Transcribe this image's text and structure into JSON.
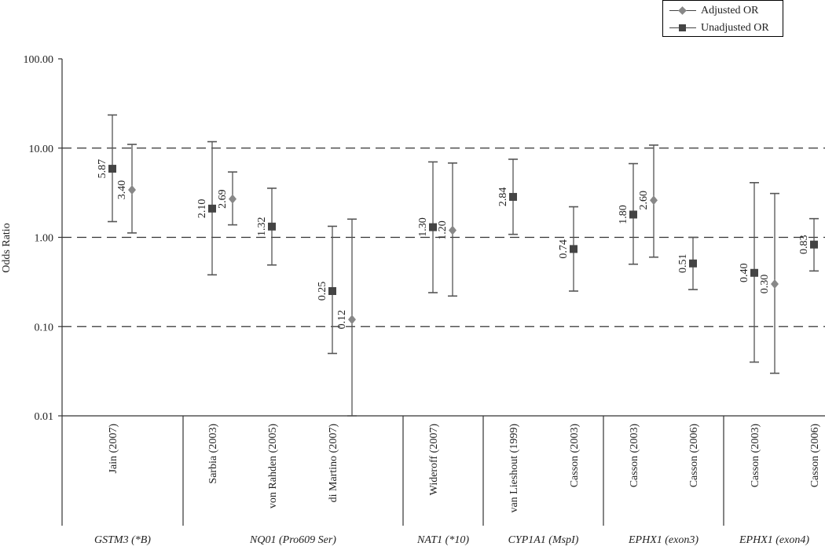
{
  "chart_data": {
    "type": "scatter",
    "subtype": "forest-plot-with-error-bars",
    "ylabel": "Odds Ratio",
    "yscale": "log",
    "ylim": [
      0.01,
      100
    ],
    "yticks": [
      "0.01",
      "0.10",
      "1.00",
      "10.00",
      "100.00"
    ],
    "reference_lines": [
      0.1,
      1,
      10
    ],
    "legend": {
      "placement": "top-right",
      "entries": [
        {
          "name": "Adjusted OR",
          "marker": "diamond",
          "color": "#888888"
        },
        {
          "name": "Unadjusted OR",
          "marker": "square",
          "color": "#444444"
        }
      ]
    },
    "studies": [
      {
        "label": "Jain (2007)",
        "group": 0,
        "series": "Unadjusted OR",
        "value": 5.87,
        "value_label": "5.87",
        "lower": 1.5,
        "upper": 23.5
      },
      {
        "label": "",
        "group": 0,
        "series": "Adjusted OR",
        "value": 3.4,
        "value_label": "3.40",
        "lower": 1.12,
        "upper": 11
      },
      {
        "label": "Sarbia (2003)",
        "group": 1,
        "series": "Unadjusted OR",
        "value": 2.1,
        "value_label": "2.10",
        "lower": 0.38,
        "upper": 11.8
      },
      {
        "label": "",
        "group": 1,
        "series": "Adjusted OR",
        "value": 2.69,
        "value_label": "2.69",
        "lower": 1.38,
        "upper": 5.4
      },
      {
        "label": "von Rahden (2005)",
        "group": 1,
        "series": "Unadjusted OR",
        "value": 1.32,
        "value_label": "1.32",
        "lower": 0.49,
        "upper": 3.55
      },
      {
        "label": "di Martino (2007)",
        "group": 1,
        "series": "Unadjusted OR",
        "value": 0.25,
        "value_label": "0.25",
        "lower": 0.05,
        "upper": 1.33
      },
      {
        "label": "",
        "group": 1,
        "series": "Adjusted OR",
        "value": 0.12,
        "value_label": "0.12",
        "lower": 0.01,
        "upper": 1.6
      },
      {
        "label": "Wideroff (2007)",
        "group": 2,
        "series": "Unadjusted OR",
        "value": 1.3,
        "value_label": "1.30",
        "lower": 0.24,
        "upper": 7.0
      },
      {
        "label": "",
        "group": 2,
        "series": "Adjusted OR",
        "value": 1.2,
        "value_label": "1.20",
        "lower": 0.22,
        "upper": 6.8
      },
      {
        "label": "van Lieshout (1999)",
        "group": 3,
        "series": "Unadjusted OR",
        "value": 2.84,
        "value_label": "2.84",
        "lower": 1.08,
        "upper": 7.5
      },
      {
        "label": "Casson (2003)",
        "group": 3,
        "series": "Unadjusted OR",
        "value": 0.74,
        "value_label": "0.74",
        "lower": 0.25,
        "upper": 2.2
      },
      {
        "label": "Casson (2003)",
        "group": 4,
        "series": "Unadjusted OR",
        "value": 1.8,
        "value_label": "1.80",
        "lower": 0.5,
        "upper": 6.7
      },
      {
        "label": "",
        "group": 4,
        "series": "Adjusted OR",
        "value": 2.6,
        "value_label": "2.60",
        "lower": 0.6,
        "upper": 10.8
      },
      {
        "label": "Casson (2006)",
        "group": 4,
        "series": "Unadjusted OR",
        "value": 0.51,
        "value_label": "0.51",
        "lower": 0.26,
        "upper": 1.0
      },
      {
        "label": "Casson (2003)",
        "group": 5,
        "series": "Unadjusted OR",
        "value": 0.4,
        "value_label": "0.40",
        "lower": 0.04,
        "upper": 4.1
      },
      {
        "label": "",
        "group": 5,
        "series": "Adjusted OR",
        "value": 0.3,
        "value_label": "0.30",
        "lower": 0.03,
        "upper": 3.1
      },
      {
        "label": "Casson (2006)",
        "group": 5,
        "series": "Unadjusted OR",
        "value": 0.83,
        "value_label": "0.83",
        "lower": 0.42,
        "upper": 1.62
      }
    ],
    "groups": [
      "GSTM3 (*B)",
      "NQ01 (Pro609 Ser)",
      "NAT1 (*10)",
      "CYP1A1 (MspI)",
      "EPHX1 (exon3)",
      "EPHX1 (exon4)"
    ]
  }
}
